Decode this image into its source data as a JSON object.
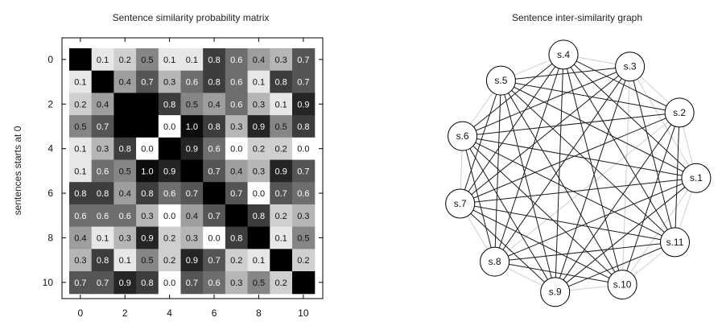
{
  "chart_data": [
    {
      "type": "heatmap",
      "title": "Sentence similarity probability matrix",
      "ylabel": "sentences starts at 0",
      "xlabel": "",
      "x_ticks": [
        "0",
        "2",
        "4",
        "6",
        "8",
        "10"
      ],
      "y_ticks": [
        "0",
        "2",
        "4",
        "6",
        "8",
        "10"
      ],
      "rows": 11,
      "cols": 11,
      "colormap": "gray_reversed",
      "grid": false,
      "values": [
        [
          null,
          0.1,
          0.2,
          0.5,
          0.1,
          0.1,
          0.8,
          0.6,
          0.4,
          0.3,
          0.7
        ],
        [
          0.1,
          null,
          0.4,
          0.7,
          0.3,
          0.6,
          0.8,
          0.6,
          0.1,
          0.8,
          0.7
        ],
        [
          0.2,
          0.4,
          null,
          null,
          0.8,
          0.5,
          0.4,
          0.6,
          0.3,
          0.1,
          0.9
        ],
        [
          0.5,
          0.7,
          null,
          null,
          0.0,
          1.0,
          0.8,
          0.3,
          0.9,
          0.5,
          0.8
        ],
        [
          0.1,
          0.3,
          0.8,
          0.0,
          null,
          0.9,
          0.6,
          0.0,
          0.2,
          0.2,
          0.0
        ],
        [
          0.1,
          0.6,
          0.5,
          1.0,
          0.9,
          null,
          0.7,
          0.4,
          0.3,
          0.9,
          0.7
        ],
        [
          0.8,
          0.8,
          0.4,
          0.8,
          0.6,
          0.7,
          null,
          0.7,
          0.0,
          0.7,
          0.6
        ],
        [
          0.6,
          0.6,
          0.6,
          0.3,
          0.0,
          0.4,
          0.7,
          null,
          0.8,
          0.2,
          0.3
        ],
        [
          0.4,
          0.1,
          0.3,
          0.9,
          0.2,
          0.3,
          0.0,
          0.8,
          null,
          0.1,
          0.5
        ],
        [
          0.3,
          0.8,
          0.1,
          0.5,
          0.2,
          0.9,
          0.7,
          0.2,
          0.1,
          null,
          0.2
        ],
        [
          0.7,
          0.7,
          0.9,
          0.8,
          0.0,
          0.7,
          0.6,
          0.3,
          0.5,
          0.2,
          null
        ]
      ],
      "display_labels": [
        [
          "",
          "0.1",
          "0.2",
          "0.5",
          "0.1",
          "0.1",
          "0.8",
          "0.6",
          "0.4",
          "0.3",
          "0.7"
        ],
        [
          "0.1",
          "",
          "0.4",
          "0.7",
          "0.3",
          "0.6",
          "0.8",
          "0.6",
          "0.1",
          "0.8",
          "0.7"
        ],
        [
          "0.2",
          "0.4",
          "",
          "",
          "0.8",
          "0.5",
          "0.4",
          "0.6",
          "0.3",
          "0.1",
          "0.9"
        ],
        [
          "0.5",
          "0.7",
          "",
          "",
          "0.0",
          "1.0",
          "0.8",
          "0.3",
          "0.9",
          "0.5",
          "0.8"
        ],
        [
          "0.1",
          "0.3",
          "0.8",
          "0.0",
          "",
          "0.9",
          "0.6",
          "0.0",
          "0.2",
          "0.2",
          "0.0"
        ],
        [
          "0.1",
          "0.6",
          "0.5",
          "1.0",
          "0.9",
          "",
          "0.7",
          "0.4",
          "0.3",
          "0.9",
          "0.7"
        ],
        [
          "0.8",
          "0.8",
          "0.4",
          "0.8",
          "0.6",
          "0.7",
          "",
          "0.7",
          "0.0",
          "0.7",
          "0.6"
        ],
        [
          "0.6",
          "0.6",
          "0.6",
          "0.3",
          "0.0",
          "0.4",
          "0.7",
          "",
          "0.8",
          "0.2",
          "0.3"
        ],
        [
          "0.4",
          "0.1",
          "0.3",
          "0.9",
          "0.2",
          "0.3",
          "0.0",
          "0.8",
          "",
          "0.1",
          "0.5"
        ],
        [
          "0.3",
          "0.8",
          "0.1",
          "0.5",
          "0.2",
          "0.9",
          "0.7",
          "0.2",
          "0.1",
          "",
          "0.2"
        ],
        [
          "0.7",
          "0.7",
          "0.9",
          "0.8",
          "0.0",
          "0.7",
          "0.6",
          "0.3",
          "0.5",
          "0.2",
          ""
        ]
      ]
    },
    {
      "type": "graph",
      "title": "Sentence inter-similarity graph",
      "nodes": [
        "s.1",
        "s.2",
        "s.3",
        "s.4",
        "s.5",
        "s.6",
        "s.7",
        "s.8",
        "s.9",
        "s.10",
        "s.11"
      ],
      "edges_strong": [
        [
          "s.1",
          "s.4"
        ],
        [
          "s.1",
          "s.5"
        ],
        [
          "s.1",
          "s.6"
        ],
        [
          "s.1",
          "s.7"
        ],
        [
          "s.1",
          "s.8"
        ],
        [
          "s.1",
          "s.9"
        ],
        [
          "s.2",
          "s.4"
        ],
        [
          "s.2",
          "s.5"
        ],
        [
          "s.2",
          "s.6"
        ],
        [
          "s.2",
          "s.7"
        ],
        [
          "s.2",
          "s.9"
        ],
        [
          "s.2",
          "s.10"
        ],
        [
          "s.2",
          "s.11"
        ],
        [
          "s.3",
          "s.5"
        ],
        [
          "s.3",
          "s.6"
        ],
        [
          "s.3",
          "s.7"
        ],
        [
          "s.3",
          "s.8"
        ],
        [
          "s.3",
          "s.9"
        ],
        [
          "s.3",
          "s.11"
        ],
        [
          "s.4",
          "s.6"
        ],
        [
          "s.4",
          "s.7"
        ],
        [
          "s.4",
          "s.8"
        ],
        [
          "s.4",
          "s.9"
        ],
        [
          "s.4",
          "s.10"
        ],
        [
          "s.4",
          "s.11"
        ],
        [
          "s.5",
          "s.7"
        ],
        [
          "s.5",
          "s.8"
        ],
        [
          "s.5",
          "s.9"
        ],
        [
          "s.5",
          "s.10"
        ],
        [
          "s.5",
          "s.11"
        ],
        [
          "s.6",
          "s.8"
        ],
        [
          "s.6",
          "s.9"
        ],
        [
          "s.6",
          "s.10"
        ],
        [
          "s.6",
          "s.11"
        ],
        [
          "s.7",
          "s.9"
        ],
        [
          "s.7",
          "s.10"
        ],
        [
          "s.7",
          "s.11"
        ],
        [
          "s.8",
          "s.10"
        ],
        [
          "s.8",
          "s.11"
        ],
        [
          "s.9",
          "s.11"
        ]
      ],
      "edges_weak": [
        [
          "s.1",
          "s.2"
        ],
        [
          "s.2",
          "s.3"
        ],
        [
          "s.3",
          "s.4"
        ],
        [
          "s.4",
          "s.5"
        ],
        [
          "s.5",
          "s.6"
        ],
        [
          "s.6",
          "s.7"
        ],
        [
          "s.7",
          "s.8"
        ],
        [
          "s.8",
          "s.9"
        ],
        [
          "s.9",
          "s.10"
        ],
        [
          "s.10",
          "s.11"
        ],
        [
          "s.11",
          "s.1"
        ],
        [
          "s.1",
          "s.3"
        ],
        [
          "s.2",
          "s.8"
        ],
        [
          "s.3",
          "s.10"
        ],
        [
          "s.1",
          "s.10"
        ],
        [
          "s.9",
          "s.1"
        ],
        [
          "s.5",
          "s.1"
        ]
      ]
    }
  ],
  "colors": {
    "background": "#ffffff",
    "frame": "#000000",
    "strong_edge": "#1a1a1a",
    "weak_edge": "#cfcfcf",
    "node_fill": "#ffffff",
    "node_stroke": "#000000"
  }
}
